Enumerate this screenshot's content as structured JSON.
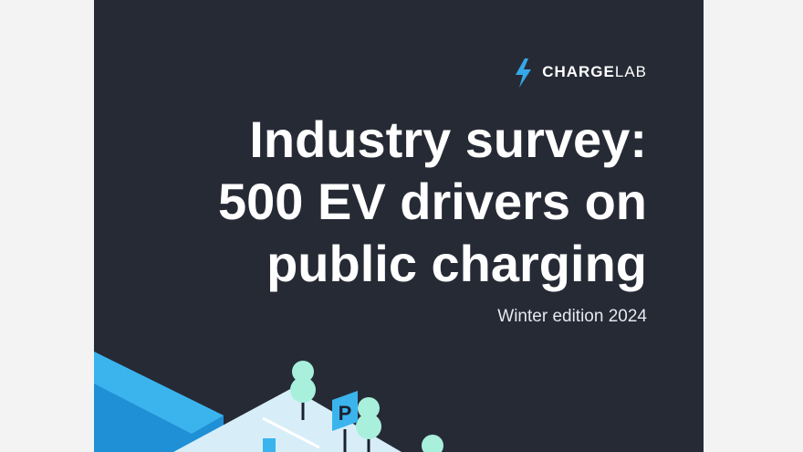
{
  "logo": {
    "bold": "CHARGE",
    "light": "LAB"
  },
  "title": [
    "Industry survey:",
    "500 EV drivers on",
    "public charging"
  ],
  "subtitle": "Winter edition 2024",
  "illustration": {
    "sign": "P"
  }
}
